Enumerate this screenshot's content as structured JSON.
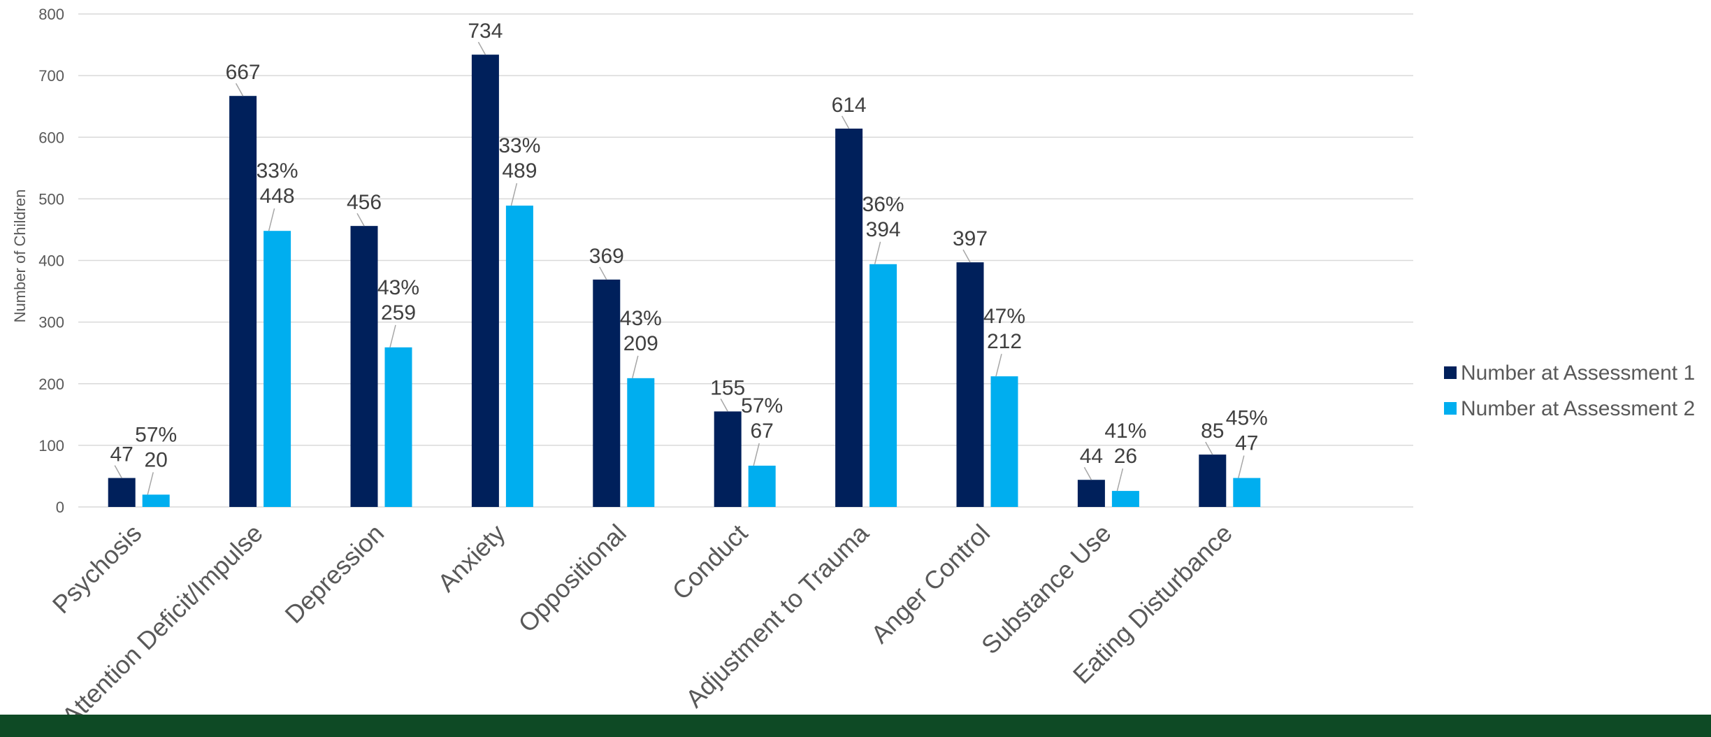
{
  "colors": {
    "series1": "#00205B",
    "series2": "#00AEEF",
    "footer": "#0E4A25"
  },
  "chart_data": {
    "type": "bar",
    "title": "",
    "xlabel": "",
    "ylabel": "Number of Children",
    "ylim": [
      0,
      800
    ],
    "yticks": [
      0,
      100,
      200,
      300,
      400,
      500,
      600,
      700,
      800
    ],
    "grid": true,
    "legend_position": "right",
    "categories": [
      "Psychosis",
      "Attention Deficit/Impulse",
      "Depression",
      "Anxiety",
      "Oppositional",
      "Conduct",
      "Adjustment to Trauma",
      "Anger Control",
      "Substance Use",
      "Eating Disturbance"
    ],
    "series": [
      {
        "name": "Number at Assessment 1",
        "values": [
          47,
          667,
          456,
          734,
          369,
          155,
          614,
          397,
          44,
          85
        ]
      },
      {
        "name": "Number at Assessment 2",
        "values": [
          20,
          448,
          259,
          489,
          209,
          67,
          394,
          212,
          26,
          47
        ],
        "percent_labels": [
          "57%",
          "33%",
          "43%",
          "33%",
          "43%",
          "57%",
          "36%",
          "47%",
          "41%",
          "45%"
        ]
      }
    ]
  }
}
